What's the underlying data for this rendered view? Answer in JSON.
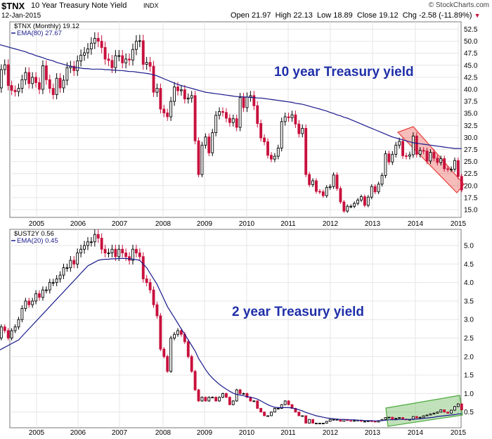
{
  "header": {
    "symbol": "$TNX",
    "name": "10 Year Treasury Note Yield",
    "exchange": "INDX",
    "date": "12-Jan-2015",
    "brand": "© StockCharts.com",
    "stats": [
      {
        "label": "Open",
        "value": "21.97"
      },
      {
        "label": "High",
        "value": "22.13"
      },
      {
        "label": "Low",
        "value": "18.89"
      },
      {
        "label": "Close",
        "value": "19.12"
      },
      {
        "label": "Chg",
        "value": "-2.58 (-11.89%)"
      }
    ],
    "chg_arrow": "▼"
  },
  "colors": {
    "up": "#000000",
    "down": "#c8103c",
    "ema": "#1a1a8c",
    "annotation": "#1f2fa8",
    "red_channel": "#e8413c",
    "green_channel": "#4caa3c"
  },
  "chart_data": [
    {
      "type": "candlestick",
      "legend": [
        "$TNX (Monthly) 19.12",
        "EMA(80) 27.67"
      ],
      "annotation": "10 year Treasury yield",
      "x_ticks": [
        "2005",
        "2006",
        "2007",
        "2008",
        "2009",
        "2010",
        "2011",
        "2012",
        "2013",
        "2014",
        "2015"
      ],
      "y_ticks": [
        "52.5",
        "50.0",
        "47.5",
        "45.0",
        "42.5",
        "40.0",
        "37.5",
        "35.0",
        "32.5",
        "30.0",
        "27.5",
        "25.0",
        "22.5",
        "20.0",
        "17.5",
        "15.0"
      ],
      "ylim": [
        13.5,
        54
      ],
      "xlim": [
        2004.0,
        2015.08
      ],
      "close": [
        42.2,
        40.3,
        44.1,
        45.1,
        40.8,
        39.8,
        39.5,
        40.2,
        42.0,
        43.5,
        41.2,
        42.5,
        41.4,
        40.0,
        44.9,
        42.0,
        40.2,
        38.9,
        42.3,
        40.3,
        41.9,
        44.5,
        44.8,
        43.9,
        45.9,
        47.1,
        47.6,
        48.4,
        49.6,
        50.6,
        50.0,
        48.7,
        46.3,
        46.0,
        44.5,
        47.0,
        47.0,
        45.5,
        46.3,
        46.1,
        48.3,
        50.0,
        50.1,
        45.2,
        45.6,
        44.8,
        39.4,
        40.2,
        35.9,
        35.1,
        34.3,
        37.5,
        40.5,
        39.7,
        39.9,
        38.0,
        38.2,
        38.7,
        29.3,
        22.3,
        28.4,
        30.1,
        26.8,
        31.0,
        34.6,
        35.4,
        35.2,
        34.0,
        33.1,
        33.9,
        32.1,
        38.3,
        36.2,
        38.4,
        38.7,
        36.6,
        32.9,
        29.9,
        29.1,
        26.3,
        25.5,
        26.1,
        27.8,
        33.3,
        34.3,
        34.1,
        34.7,
        32.8,
        30.8,
        31.9,
        22.3,
        20.2,
        21.0,
        18.8,
        18.7,
        17.9,
        19.6,
        19.8,
        22.2,
        19.4,
        16.6,
        14.7,
        15.7,
        15.7,
        16.3,
        17.0,
        17.7,
        15.9,
        17.6,
        19.8,
        18.7,
        20.3,
        22.1,
        26.6,
        24.9,
        26.5,
        28.4,
        29.2,
        26.2,
        26.1,
        26.4,
        30.3,
        26.5,
        27.3,
        27.2,
        25.1,
        26.9,
        25.7,
        24.8,
        25.6,
        23.5,
        23.4,
        23.4,
        25.2,
        21.9,
        19.1
      ],
      "series": [
        {
          "name": "EMA(80)",
          "values": [
            49.5,
            49.4,
            49.2,
            49.0,
            48.8,
            48.6,
            48.4,
            48.2,
            48.0,
            47.8,
            47.5,
            47.3,
            47.0,
            46.8,
            46.6,
            46.3,
            46.1,
            45.9,
            45.6,
            45.4,
            45.2,
            45.0,
            44.8,
            44.6,
            44.5,
            44.4,
            44.3,
            44.3,
            44.2,
            44.2,
            44.2,
            44.2,
            44.1,
            44.1,
            44.0,
            44.0,
            43.9,
            43.9,
            43.8,
            43.7,
            43.7,
            43.6,
            43.5,
            43.4,
            43.3,
            43.2,
            43.0,
            42.8,
            42.5,
            42.2,
            41.9,
            41.6,
            41.3,
            41.0,
            40.8,
            40.6,
            40.4,
            40.2,
            40.0,
            39.8,
            39.6,
            39.4,
            39.3,
            39.2,
            39.1,
            39.0,
            38.9,
            38.8,
            38.7,
            38.6,
            38.5,
            38.5,
            38.4,
            38.4,
            38.3,
            38.3,
            38.2,
            38.2,
            38.1,
            38.0,
            37.9,
            37.8,
            37.7,
            37.6,
            37.5,
            37.4,
            37.3,
            37.1,
            37.0,
            36.9,
            36.7,
            36.5,
            36.3,
            36.1,
            35.9,
            35.7,
            35.5,
            35.2,
            35.0,
            34.7,
            34.5,
            34.2,
            34.0,
            33.7,
            33.4,
            33.1,
            32.8,
            32.5,
            32.2,
            31.9,
            31.6,
            31.3,
            31.0,
            30.7,
            30.4,
            30.1,
            29.9,
            29.7,
            29.5,
            29.3,
            29.1,
            28.9,
            28.8,
            28.7,
            28.6,
            28.5,
            28.4,
            28.3,
            28.2,
            28.1,
            28.0,
            27.9,
            27.8,
            27.7,
            27.7,
            27.67
          ]
        }
      ],
      "channel_label": "red down-channel 2013-2015"
    },
    {
      "type": "candlestick",
      "legend": [
        "$UST2Y 0.56",
        "EMA(20) 0.45"
      ],
      "annotation": "2 year Treasury yield",
      "x_ticks": [
        "2005",
        "2006",
        "2007",
        "2008",
        "2009",
        "2010",
        "2011",
        "2012",
        "2013",
        "2014",
        "2015"
      ],
      "y_ticks": [
        "5.0",
        "4.5",
        "4.0",
        "3.5",
        "3.0",
        "2.5",
        "2.0",
        "1.5",
        "1.0",
        "0.5"
      ],
      "ylim": [
        0.1,
        5.5
      ],
      "xlim": [
        2004.0,
        2015.08
      ],
      "close": [
        2.6,
        2.5,
        2.8,
        2.7,
        2.5,
        2.7,
        2.8,
        3.0,
        3.3,
        3.5,
        3.4,
        3.5,
        3.7,
        3.6,
        3.8,
        3.8,
        4.0,
        4.0,
        4.1,
        4.2,
        4.4,
        4.4,
        4.6,
        4.5,
        4.8,
        4.9,
        5.0,
        5.1,
        5.1,
        5.3,
        5.2,
        4.9,
        4.8,
        4.8,
        4.9,
        4.7,
        4.9,
        4.8,
        4.7,
        4.6,
        4.9,
        4.8,
        4.7,
        4.1,
        4.0,
        3.8,
        3.4,
        3.1,
        2.2,
        2.0,
        1.6,
        2.5,
        2.6,
        2.7,
        2.6,
        2.4,
        2.0,
        1.6,
        1.1,
        0.8,
        0.9,
        0.8,
        0.9,
        0.9,
        0.8,
        0.9,
        1.0,
        0.9,
        0.7,
        0.8,
        1.1,
        1.0,
        1.0,
        0.9,
        0.8,
        0.8,
        0.6,
        0.5,
        0.4,
        0.4,
        0.5,
        0.6,
        0.6,
        0.7,
        0.8,
        0.7,
        0.6,
        0.5,
        0.4,
        0.4,
        0.2,
        0.3,
        0.2,
        0.2,
        0.2,
        0.2,
        0.25,
        0.3,
        0.3,
        0.3,
        0.25,
        0.3,
        0.27,
        0.26,
        0.27,
        0.28,
        0.25,
        0.25,
        0.26,
        0.25,
        0.23,
        0.27,
        0.3,
        0.35,
        0.36,
        0.31,
        0.33,
        0.35,
        0.31,
        0.3,
        0.3,
        0.38,
        0.34,
        0.36,
        0.4,
        0.42,
        0.45,
        0.47,
        0.5,
        0.56,
        0.5,
        0.47,
        0.55,
        0.65,
        0.72,
        0.56
      ],
      "series": [
        {
          "name": "EMA(20)",
          "values": [
            2.1,
            2.15,
            2.2,
            2.25,
            2.3,
            2.35,
            2.4,
            2.45,
            2.55,
            2.65,
            2.75,
            2.85,
            2.95,
            3.05,
            3.15,
            3.25,
            3.35,
            3.45,
            3.55,
            3.65,
            3.75,
            3.85,
            3.95,
            4.05,
            4.15,
            4.25,
            4.35,
            4.45,
            4.5,
            4.55,
            4.6,
            4.62,
            4.63,
            4.63,
            4.64,
            4.64,
            4.65,
            4.65,
            4.65,
            4.64,
            4.63,
            4.62,
            4.6,
            4.5,
            4.4,
            4.25,
            4.1,
            3.95,
            3.75,
            3.55,
            3.35,
            3.2,
            3.05,
            2.9,
            2.75,
            2.6,
            2.45,
            2.3,
            2.15,
            1.95,
            1.8,
            1.65,
            1.52,
            1.42,
            1.33,
            1.25,
            1.18,
            1.12,
            1.06,
            1.01,
            0.98,
            0.96,
            0.94,
            0.92,
            0.9,
            0.88,
            0.85,
            0.8,
            0.75,
            0.7,
            0.66,
            0.63,
            0.62,
            0.62,
            0.62,
            0.62,
            0.61,
            0.59,
            0.56,
            0.53,
            0.49,
            0.46,
            0.43,
            0.4,
            0.38,
            0.36,
            0.34,
            0.33,
            0.32,
            0.31,
            0.3,
            0.3,
            0.29,
            0.29,
            0.29,
            0.28,
            0.28,
            0.27,
            0.27,
            0.27,
            0.26,
            0.26,
            0.27,
            0.28,
            0.29,
            0.29,
            0.29,
            0.3,
            0.3,
            0.3,
            0.3,
            0.31,
            0.31,
            0.32,
            0.33,
            0.34,
            0.35,
            0.36,
            0.38,
            0.39,
            0.4,
            0.41,
            0.42,
            0.43,
            0.45,
            0.45
          ]
        }
      ],
      "channel_label": "green up-channel 2013-2015"
    }
  ]
}
